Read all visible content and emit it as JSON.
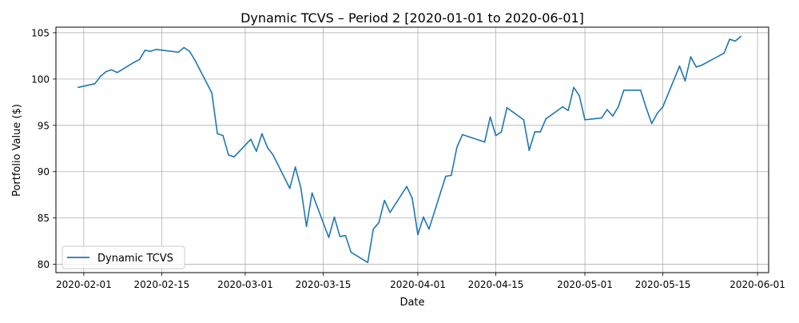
{
  "chart_data": {
    "type": "line",
    "title": "Dynamic TCVS – Period 2 [2020-01-01 to 2020-06-01]",
    "xlabel": "Date",
    "ylabel": "Portfolio Value ($)",
    "xlim": [
      "2020-01-27",
      "2020-06-03"
    ],
    "ylim": [
      79.1,
      105.6
    ],
    "grid": true,
    "legend_position": "lower-left",
    "x_ticks": [
      "2020-02-01",
      "2020-02-15",
      "2020-03-01",
      "2020-03-15",
      "2020-04-01",
      "2020-04-15",
      "2020-05-01",
      "2020-05-15",
      "2020-06-01"
    ],
    "y_ticks": [
      80,
      85,
      90,
      95,
      100,
      105
    ],
    "colors": {
      "series": "#1f77b4",
      "grid": "#b0b0b0"
    },
    "series": [
      {
        "name": "Dynamic TCVS",
        "points": [
          [
            "2020-01-31",
            99.1
          ],
          [
            "2020-02-03",
            99.5
          ],
          [
            "2020-02-04",
            100.3
          ],
          [
            "2020-02-05",
            100.8
          ],
          [
            "2020-02-06",
            101.0
          ],
          [
            "2020-02-07",
            100.7
          ],
          [
            "2020-02-10",
            101.8
          ],
          [
            "2020-02-11",
            102.1
          ],
          [
            "2020-02-12",
            103.1
          ],
          [
            "2020-02-13",
            103.0
          ],
          [
            "2020-02-14",
            103.2
          ],
          [
            "2020-02-18",
            102.9
          ],
          [
            "2020-02-19",
            103.4
          ],
          [
            "2020-02-20",
            103.0
          ],
          [
            "2020-02-21",
            102.0
          ],
          [
            "2020-02-24",
            98.5
          ],
          [
            "2020-02-25",
            94.1
          ],
          [
            "2020-02-26",
            93.9
          ],
          [
            "2020-02-27",
            91.8
          ],
          [
            "2020-02-28",
            91.6
          ],
          [
            "2020-03-02",
            93.5
          ],
          [
            "2020-03-03",
            92.2
          ],
          [
            "2020-03-04",
            94.1
          ],
          [
            "2020-03-05",
            92.6
          ],
          [
            "2020-03-06",
            91.8
          ],
          [
            "2020-03-09",
            88.2
          ],
          [
            "2020-03-10",
            90.5
          ],
          [
            "2020-03-11",
            88.2
          ],
          [
            "2020-03-12",
            84.1
          ],
          [
            "2020-03-13",
            87.7
          ],
          [
            "2020-03-16",
            82.9
          ],
          [
            "2020-03-17",
            85.1
          ],
          [
            "2020-03-18",
            83.0
          ],
          [
            "2020-03-19",
            83.1
          ],
          [
            "2020-03-20",
            81.3
          ],
          [
            "2020-03-23",
            80.2
          ],
          [
            "2020-03-24",
            83.8
          ],
          [
            "2020-03-25",
            84.5
          ],
          [
            "2020-03-26",
            86.9
          ],
          [
            "2020-03-27",
            85.6
          ],
          [
            "2020-03-30",
            88.4
          ],
          [
            "2020-03-31",
            87.1
          ],
          [
            "2020-04-01",
            83.2
          ],
          [
            "2020-04-02",
            85.1
          ],
          [
            "2020-04-03",
            83.8
          ],
          [
            "2020-04-06",
            89.5
          ],
          [
            "2020-04-07",
            89.6
          ],
          [
            "2020-04-08",
            92.6
          ],
          [
            "2020-04-09",
            94.0
          ],
          [
            "2020-04-13",
            93.2
          ],
          [
            "2020-04-14",
            95.9
          ],
          [
            "2020-04-15",
            93.9
          ],
          [
            "2020-04-16",
            94.3
          ],
          [
            "2020-04-17",
            96.9
          ],
          [
            "2020-04-20",
            95.6
          ],
          [
            "2020-04-21",
            92.3
          ],
          [
            "2020-04-22",
            94.3
          ],
          [
            "2020-04-23",
            94.3
          ],
          [
            "2020-04-24",
            95.7
          ],
          [
            "2020-04-27",
            97.0
          ],
          [
            "2020-04-28",
            96.6
          ],
          [
            "2020-04-29",
            99.1
          ],
          [
            "2020-04-30",
            98.2
          ],
          [
            "2020-05-01",
            95.6
          ],
          [
            "2020-05-04",
            95.8
          ],
          [
            "2020-05-05",
            96.7
          ],
          [
            "2020-05-06",
            96.0
          ],
          [
            "2020-05-07",
            97.0
          ],
          [
            "2020-05-08",
            98.8
          ],
          [
            "2020-05-11",
            98.8
          ],
          [
            "2020-05-12",
            96.9
          ],
          [
            "2020-05-13",
            95.2
          ],
          [
            "2020-05-14",
            96.3
          ],
          [
            "2020-05-15",
            97.0
          ],
          [
            "2020-05-18",
            101.4
          ],
          [
            "2020-05-19",
            99.8
          ],
          [
            "2020-05-20",
            102.4
          ],
          [
            "2020-05-21",
            101.3
          ],
          [
            "2020-05-22",
            101.5
          ],
          [
            "2020-05-26",
            102.8
          ],
          [
            "2020-05-27",
            104.3
          ],
          [
            "2020-05-28",
            104.1
          ],
          [
            "2020-05-29",
            104.6
          ]
        ]
      }
    ]
  }
}
